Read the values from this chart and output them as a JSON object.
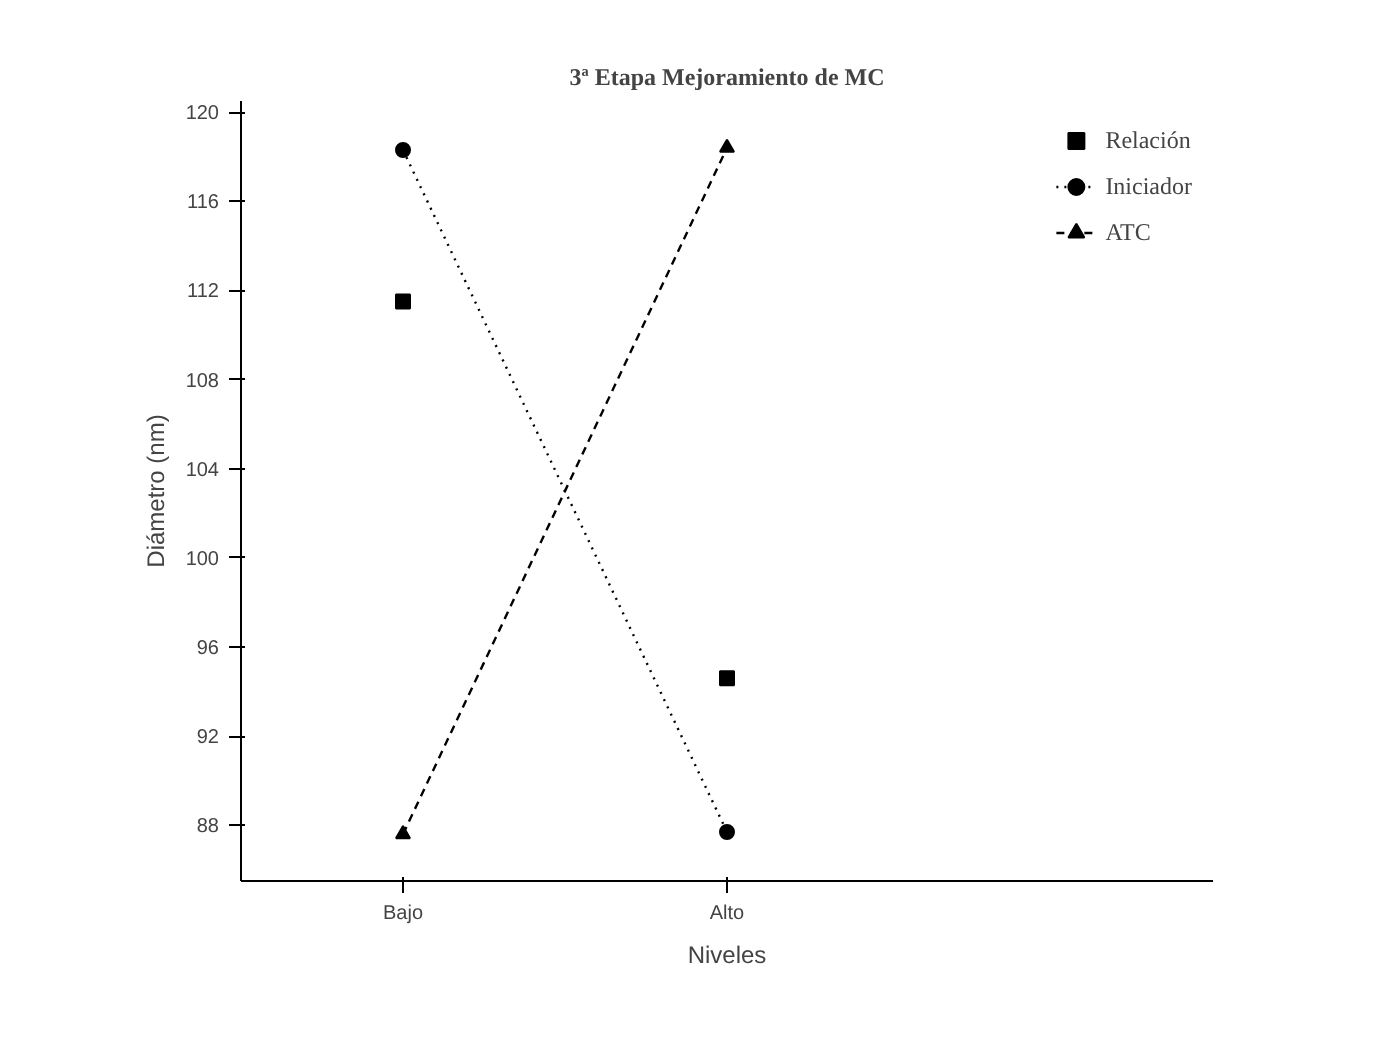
{
  "chart_data": {
    "type": "line",
    "title": "3ª Etapa Mejoramiento de MC",
    "xlabel": "Niveles",
    "ylabel": "Diámetro (nm)",
    "categories": [
      "Bajo",
      "Alto"
    ],
    "series": [
      {
        "name": "Relación",
        "type": "scatter",
        "color": "#000000",
        "values": [
          111.5,
          94.6
        ],
        "marker": "square"
      },
      {
        "name": "Iniciador",
        "color": "#000000",
        "values": [
          118.3,
          87.7
        ],
        "marker": "circle",
        "line_style": "dotted"
      },
      {
        "name": "ATC",
        "color": "#000000",
        "values": [
          87.6,
          118.4
        ],
        "marker": "triangle",
        "line_style": "dashed"
      }
    ],
    "ylim": [
      85.5,
      120.5
    ],
    "yticks": [
      88,
      92,
      96,
      100,
      104,
      108,
      112,
      116,
      120
    ],
    "grid": false,
    "legend": "top right"
  }
}
